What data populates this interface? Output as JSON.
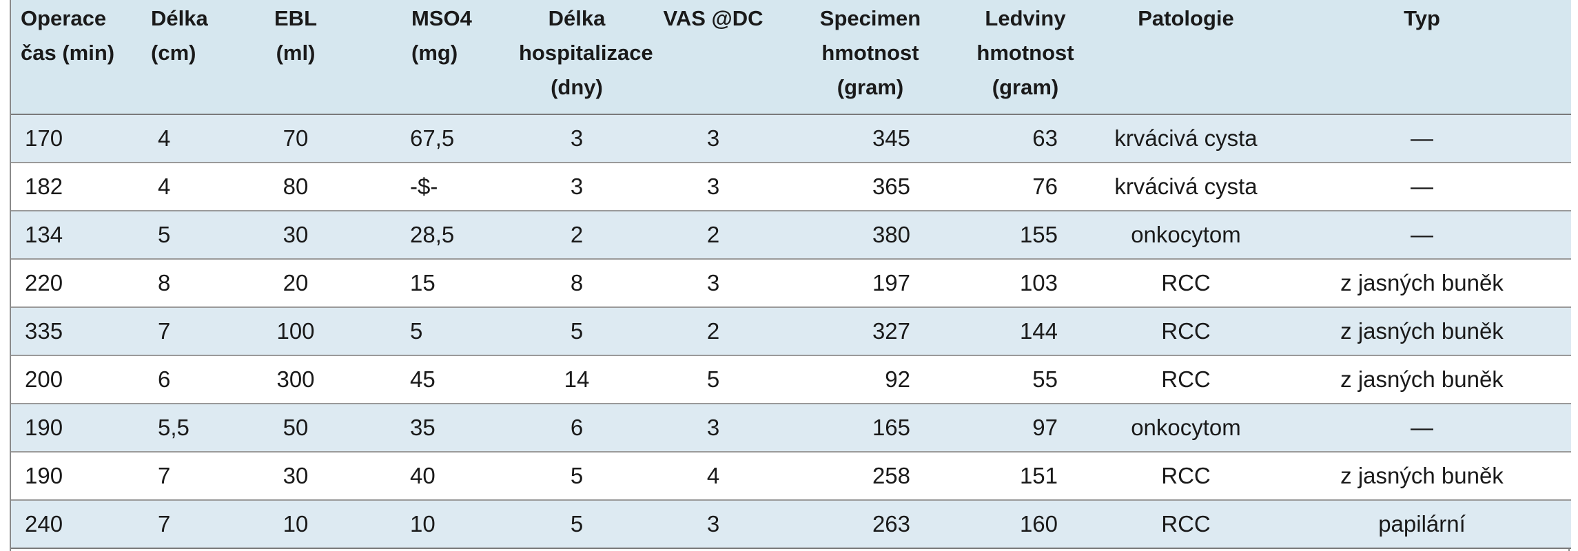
{
  "table": {
    "headers": [
      [
        "Operace",
        "čas (min)"
      ],
      [
        "Délka",
        "(cm)"
      ],
      [
        "EBL",
        "(ml)"
      ],
      [
        "MSO4",
        "(mg)"
      ],
      [
        "Délka",
        "hospitalizace",
        "(dny)"
      ],
      [
        "VAS @DC"
      ],
      [
        "Specimen",
        "hmotnost",
        "(gram)"
      ],
      [
        "Ledviny",
        "hmotnost",
        "(gram)"
      ],
      [
        "Patologie"
      ],
      [
        "Typ"
      ]
    ],
    "rows": [
      [
        "170",
        "4",
        "70",
        "67,5",
        "3",
        "3",
        "345",
        "63",
        "krvácivá cysta",
        "—"
      ],
      [
        "182",
        "4",
        "80",
        "-$-",
        "3",
        "3",
        "365",
        "76",
        "krvácivá cysta",
        "—"
      ],
      [
        "134",
        "5",
        "30",
        "28,5",
        "2",
        "2",
        "380",
        "155",
        "onkocytom",
        "—"
      ],
      [
        "220",
        "8",
        "20",
        "15",
        "8",
        "3",
        "197",
        "103",
        "RCC",
        "z jasných buněk"
      ],
      [
        "335",
        "7",
        "100",
        "5",
        "5",
        "2",
        "327",
        "144",
        "RCC",
        "z jasných buněk"
      ],
      [
        "200",
        "6",
        "300",
        "45",
        "14",
        "5",
        "92",
        "55",
        "RCC",
        "z jasných buněk"
      ],
      [
        "190",
        "5,5",
        "50",
        "35",
        "6",
        "3",
        "165",
        "97",
        "onkocytom",
        "—"
      ],
      [
        "190",
        "7",
        "30",
        "40",
        "5",
        "4",
        "258",
        "151",
        "RCC",
        "z jasných buněk"
      ],
      [
        "240",
        "7",
        "10",
        "10",
        "5",
        "3",
        "263",
        "160",
        "RCC",
        "papilární"
      ]
    ]
  },
  "colors": {
    "header_bg": "#d6e7ef",
    "stripe_bg": "#ddeaf2",
    "rule": "#8a8a8a"
  }
}
